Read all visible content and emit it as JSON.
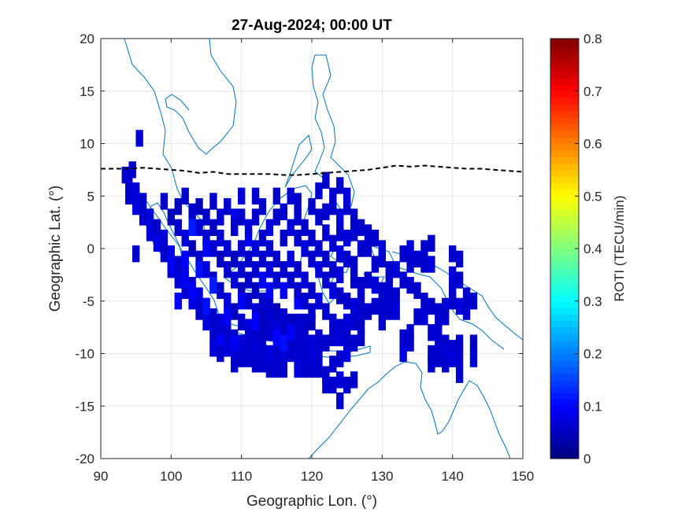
{
  "chart_data": {
    "type": "heatmap",
    "title": "27-Aug-2024; 00:00 UT",
    "xlabel": "Geographic Lon. (°)",
    "ylabel": "Geographic Lat. (°)",
    "xlim": [
      90,
      150
    ],
    "ylim": [
      -20,
      20
    ],
    "xticks": [
      "90",
      "100",
      "110",
      "120",
      "130",
      "140",
      "150"
    ],
    "yticks": [
      "20",
      "15",
      "10",
      "5",
      "0",
      "-5",
      "-10",
      "-15",
      "-20"
    ],
    "grid": true,
    "colorbar": {
      "label": "ROTI (TECU/min)",
      "range": [
        0,
        0.8
      ],
      "ticks": [
        "0.8",
        "0.7",
        "0.6",
        "0.5",
        "0.4",
        "0.3",
        "0.2",
        "0.1",
        "0"
      ],
      "colormap": "jet"
    },
    "roti_cells": [
      [
        94,
        6.5,
        0.06
      ],
      [
        94,
        5,
        0.06
      ],
      [
        95,
        5.5,
        0.07
      ],
      [
        95,
        4,
        0.07
      ],
      [
        96,
        4.5,
        0.06
      ],
      [
        96,
        3,
        0.06
      ],
      [
        97,
        3,
        0.07
      ],
      [
        97,
        1.5,
        0.07
      ],
      [
        98,
        2,
        0.06
      ],
      [
        98,
        0.5,
        0.08
      ],
      [
        99,
        1,
        0.07
      ],
      [
        99,
        -0.5,
        0.06
      ],
      [
        100,
        -0.5,
        0.08
      ],
      [
        100,
        -2,
        0.07
      ],
      [
        101,
        -1.5,
        0.06
      ],
      [
        101,
        -3,
        0.07
      ],
      [
        102,
        -2.5,
        0.07
      ],
      [
        102,
        -4,
        0.06
      ],
      [
        103,
        -3.5,
        0.06
      ],
      [
        103,
        -5,
        0.08
      ],
      [
        104,
        -4.5,
        0.07
      ],
      [
        104,
        -6,
        0.06
      ],
      [
        105,
        -5.5,
        0.06
      ],
      [
        105,
        -7,
        0.07
      ],
      [
        106,
        -6.5,
        0.06
      ],
      [
        106,
        -8,
        0.06
      ],
      [
        107,
        -7,
        0.07
      ],
      [
        107,
        -8.5,
        0.06
      ],
      [
        108,
        -8,
        0.06
      ],
      [
        108,
        -9.5,
        0.07
      ],
      [
        109,
        -8.5,
        0.06
      ],
      [
        109,
        -10,
        0.06
      ],
      [
        110,
        -9,
        0.07
      ],
      [
        110,
        -10.5,
        0.06
      ],
      [
        111,
        -9,
        0.06
      ],
      [
        111,
        -10.5,
        0.06
      ],
      [
        112,
        -9.5,
        0.07
      ],
      [
        112,
        -11,
        0.06
      ],
      [
        113,
        -9.5,
        0.06
      ],
      [
        113,
        -11,
        0.06
      ],
      [
        114,
        -10,
        0.07
      ],
      [
        114,
        -11.5,
        0.06
      ],
      [
        115,
        -10,
        0.06
      ],
      [
        115,
        -11.5,
        0.06
      ],
      [
        116,
        -10,
        0.07
      ],
      [
        116,
        -11.5,
        0.06
      ],
      [
        117,
        -10,
        0.06
      ],
      [
        118,
        -10,
        0.06
      ],
      [
        118,
        -11.5,
        0.07
      ],
      [
        119,
        -10,
        0.06
      ],
      [
        120,
        -10,
        0.07
      ],
      [
        120,
        -11.5,
        0.06
      ],
      [
        121,
        -10,
        0.06
      ],
      [
        94.5,
        7.5,
        0.06
      ],
      [
        93.5,
        7,
        0.06
      ],
      [
        95.5,
        10.5,
        0.07
      ],
      [
        95,
        -0.5,
        0.06
      ],
      [
        100,
        3,
        0.05
      ],
      [
        101,
        2,
        0.06
      ],
      [
        102,
        1,
        0.07
      ],
      [
        103,
        0,
        0.05
      ],
      [
        104,
        -1,
        0.06
      ],
      [
        105,
        -2,
        0.07
      ],
      [
        106,
        -3,
        0.05
      ],
      [
        107,
        -4,
        0.06
      ],
      [
        108,
        -5,
        0.07
      ],
      [
        109,
        -6,
        0.05
      ],
      [
        110,
        -7,
        0.06
      ],
      [
        111,
        -7.5,
        0.07
      ],
      [
        112,
        -8,
        0.06
      ],
      [
        113,
        -8,
        0.05
      ],
      [
        114,
        -8,
        0.06
      ],
      [
        115,
        -7.5,
        0.07
      ],
      [
        116,
        -8,
        0.06
      ],
      [
        117,
        -8.5,
        0.05
      ],
      [
        118,
        -8.5,
        0.06
      ],
      [
        119,
        -8.5,
        0.06
      ],
      [
        99,
        4.5,
        0.06
      ],
      [
        101,
        4,
        0.05
      ],
      [
        102,
        5,
        0.06
      ],
      [
        103,
        3.5,
        0.06
      ],
      [
        104,
        4,
        0.05
      ],
      [
        104,
        2,
        0.07
      ],
      [
        105,
        3,
        0.06
      ],
      [
        105,
        1,
        0.06
      ],
      [
        106,
        2,
        0.05
      ],
      [
        106,
        0,
        0.06
      ],
      [
        107,
        1,
        0.07
      ],
      [
        107,
        -1,
        0.05
      ],
      [
        108,
        0,
        0.06
      ],
      [
        108,
        -2,
        0.06
      ],
      [
        109,
        -1,
        0.05
      ],
      [
        109,
        -3,
        0.07
      ],
      [
        110,
        -2,
        0.06
      ],
      [
        110,
        -4,
        0.05
      ],
      [
        111,
        -3,
        0.06
      ],
      [
        111,
        -5,
        0.06
      ],
      [
        112,
        -4,
        0.05
      ],
      [
        112,
        -6,
        0.07
      ],
      [
        113,
        -5,
        0.06
      ],
      [
        113,
        -6.5,
        0.05
      ],
      [
        114,
        -5.5,
        0.06
      ],
      [
        114,
        -7,
        0.06
      ],
      [
        115,
        -6,
        0.05
      ],
      [
        116,
        -6.5,
        0.06
      ],
      [
        117,
        -7,
        0.05
      ],
      [
        118,
        -7,
        0.06
      ],
      [
        119,
        -7,
        0.06
      ],
      [
        120,
        -7,
        0.05
      ],
      [
        103,
        2,
        0.12
      ],
      [
        102,
        -1,
        0.1
      ],
      [
        101,
        -5,
        0.09
      ],
      [
        104,
        -2,
        0.11
      ],
      [
        106,
        -3.5,
        0.12
      ],
      [
        103,
        -4,
        0.1
      ],
      [
        105,
        -5.5,
        0.11
      ],
      [
        108,
        -6.5,
        0.1
      ],
      [
        110,
        -5,
        0.09
      ],
      [
        112,
        -7,
        0.1
      ],
      [
        107,
        -9,
        0.1
      ],
      [
        109,
        -9,
        0.09
      ],
      [
        115,
        -8.5,
        0.1
      ],
      [
        116,
        -9,
        0.11
      ],
      [
        117,
        -8,
        0.09
      ],
      [
        113,
        -3,
        0.1
      ],
      [
        114,
        -4,
        0.1
      ],
      [
        116,
        -4,
        0.09
      ],
      [
        118,
        -5,
        0.1
      ],
      [
        111,
        1,
        0.09
      ],
      [
        109,
        3,
        0.09
      ],
      [
        100,
        -1.5,
        0.1
      ],
      [
        102,
        -3,
        0.09
      ],
      [
        105,
        0,
        0.1
      ],
      [
        106,
        4.5,
        0.06
      ],
      [
        107,
        3,
        0.07
      ],
      [
        108,
        4,
        0.06
      ],
      [
        109,
        2,
        0.06
      ],
      [
        110,
        3,
        0.06
      ],
      [
        111,
        2,
        0.07
      ],
      [
        112,
        3,
        0.06
      ],
      [
        113,
        1,
        0.06
      ],
      [
        114,
        2,
        0.07
      ],
      [
        115,
        3,
        0.06
      ],
      [
        116,
        1,
        0.06
      ],
      [
        117,
        2,
        0.07
      ],
      [
        118,
        3,
        0.06
      ],
      [
        118,
        1,
        0.06
      ],
      [
        119,
        2,
        0.06
      ],
      [
        119,
        0,
        0.07
      ],
      [
        120,
        1,
        0.06
      ],
      [
        120,
        -1,
        0.06
      ],
      [
        121,
        0,
        0.06
      ],
      [
        121,
        -2,
        0.07
      ],
      [
        122,
        -1,
        0.06
      ],
      [
        122,
        -3,
        0.06
      ],
      [
        123,
        -2,
        0.06
      ],
      [
        123,
        -4,
        0.07
      ],
      [
        110,
        0,
        0.06
      ],
      [
        111,
        -1,
        0.06
      ],
      [
        112,
        0,
        0.07
      ],
      [
        112,
        -2,
        0.06
      ],
      [
        113,
        -1,
        0.06
      ],
      [
        114,
        0,
        0.06
      ],
      [
        114,
        -2,
        0.07
      ],
      [
        115,
        -1,
        0.06
      ],
      [
        115,
        -3,
        0.06
      ],
      [
        116,
        -2,
        0.06
      ],
      [
        117,
        -1,
        0.07
      ],
      [
        117,
        -3,
        0.06
      ],
      [
        118,
        -2,
        0.06
      ],
      [
        118,
        -4,
        0.06
      ],
      [
        119,
        -3,
        0.07
      ],
      [
        119,
        -5,
        0.06
      ],
      [
        120,
        -4,
        0.06
      ],
      [
        120,
        -6,
        0.06
      ],
      [
        121,
        -5,
        0.07
      ],
      [
        122,
        -6,
        0.06
      ],
      [
        123,
        -7,
        0.06
      ],
      [
        124,
        -7.5,
        0.06
      ],
      [
        125,
        -7,
        0.07
      ],
      [
        126,
        -7,
        0.06
      ],
      [
        127,
        -6.5,
        0.06
      ],
      [
        128,
        -6,
        0.06
      ],
      [
        129,
        -5.5,
        0.06
      ],
      [
        112,
        5,
        0.06
      ],
      [
        115,
        5,
        0.06
      ],
      [
        117,
        5,
        0.07
      ],
      [
        118,
        4.5,
        0.06
      ],
      [
        116,
        3.5,
        0.06
      ],
      [
        113,
        4,
        0.06
      ],
      [
        110,
        5,
        0.07
      ],
      [
        121,
        3,
        0.06
      ],
      [
        122,
        3.5,
        0.06
      ],
      [
        123,
        4,
        0.06
      ],
      [
        124,
        3,
        0.07
      ],
      [
        125,
        4,
        0.06
      ],
      [
        126,
        3,
        0.06
      ],
      [
        124,
        1.5,
        0.06
      ],
      [
        125,
        1,
        0.07
      ],
      [
        126,
        1.5,
        0.06
      ],
      [
        127,
        2,
        0.06
      ],
      [
        128,
        1.5,
        0.06
      ],
      [
        123,
        0.5,
        0.06
      ],
      [
        124,
        -0.5,
        0.07
      ],
      [
        125,
        -1,
        0.06
      ],
      [
        126,
        -1.5,
        0.06
      ],
      [
        127,
        0,
        0.06
      ],
      [
        128,
        0,
        0.06
      ],
      [
        124,
        -2.5,
        0.07
      ],
      [
        126,
        -3,
        0.06
      ],
      [
        127,
        -3.5,
        0.06
      ],
      [
        128,
        -3,
        0.06
      ],
      [
        129,
        -3.5,
        0.07
      ],
      [
        130,
        -4,
        0.06
      ],
      [
        124,
        -4.5,
        0.06
      ],
      [
        125,
        -5,
        0.06
      ],
      [
        126,
        -5.5,
        0.07
      ],
      [
        127,
        -5,
        0.06
      ],
      [
        122,
        6.5,
        0.06
      ],
      [
        123,
        5,
        0.06
      ],
      [
        124,
        6,
        0.06
      ],
      [
        125,
        5,
        0.07
      ],
      [
        122,
        1.5,
        0.06
      ],
      [
        120,
        4,
        0.06
      ],
      [
        121,
        5.5,
        0.06
      ],
      [
        129,
        1,
        0.06
      ],
      [
        130,
        -1,
        0.06
      ],
      [
        130,
        0,
        0.07
      ],
      [
        129,
        -1.5,
        0.06
      ],
      [
        131,
        -2,
        0.06
      ],
      [
        131,
        -3,
        0.06
      ],
      [
        132,
        -2,
        0.07
      ],
      [
        133,
        -3,
        0.06
      ],
      [
        131,
        -4.5,
        0.06
      ],
      [
        132,
        -4.5,
        0.06
      ],
      [
        132,
        -6,
        0.07
      ],
      [
        131,
        -6,
        0.06
      ],
      [
        130,
        -5.5,
        0.06
      ],
      [
        130,
        -7,
        0.06
      ],
      [
        133,
        -0.5,
        0.06
      ],
      [
        134,
        0,
        0.07
      ],
      [
        134,
        -1.5,
        0.06
      ],
      [
        135,
        -1,
        0.06
      ],
      [
        136,
        -1.5,
        0.06
      ],
      [
        136,
        0,
        0.06
      ],
      [
        137,
        -1.5,
        0.07
      ],
      [
        134,
        -3.5,
        0.06
      ],
      [
        135,
        -4,
        0.06
      ],
      [
        136,
        -5,
        0.06
      ],
      [
        136,
        -6.5,
        0.07
      ],
      [
        137,
        -5.5,
        0.06
      ],
      [
        138,
        -6,
        0.06
      ],
      [
        138,
        -7.5,
        0.06
      ],
      [
        137,
        -8,
        0.07
      ],
      [
        138,
        -9,
        0.06
      ],
      [
        133,
        -8.5,
        0.06
      ],
      [
        134,
        -9,
        0.06
      ],
      [
        133,
        -10,
        0.07
      ],
      [
        134,
        -8,
        0.06
      ],
      [
        135,
        -6.5,
        0.06
      ],
      [
        137,
        0.5,
        0.06
      ],
      [
        140,
        -0.5,
        0.06
      ],
      [
        141,
        -1,
        0.06
      ],
      [
        140,
        -2.5,
        0.07
      ],
      [
        141,
        -3,
        0.06
      ],
      [
        140,
        -4,
        0.06
      ],
      [
        140,
        -5,
        0.06
      ],
      [
        141,
        -5.5,
        0.07
      ],
      [
        142,
        -4.5,
        0.06
      ],
      [
        142,
        -6,
        0.06
      ],
      [
        143,
        -5,
        0.06
      ],
      [
        139,
        -5.5,
        0.07
      ],
      [
        139,
        -6.5,
        0.06
      ],
      [
        143,
        -9,
        0.06
      ],
      [
        139,
        -9,
        0.06
      ],
      [
        139,
        -10,
        0.07
      ],
      [
        140,
        -9.5,
        0.06
      ],
      [
        141,
        -10.5,
        0.06
      ],
      [
        141,
        -12,
        0.06
      ],
      [
        143,
        -10.5,
        0.07
      ],
      [
        137,
        -10,
        0.06
      ],
      [
        137,
        -11,
        0.06
      ],
      [
        138,
        -10.5,
        0.06
      ],
      [
        139,
        -11,
        0.06
      ],
      [
        140,
        -10.5,
        0.07
      ],
      [
        141,
        -9,
        0.06
      ],
      [
        122,
        -13,
        0.06
      ],
      [
        123,
        -13,
        0.06
      ],
      [
        124,
        -12.5,
        0.07
      ],
      [
        125,
        -13,
        0.06
      ],
      [
        126,
        -12.5,
        0.06
      ],
      [
        124,
        -14.5,
        0.06
      ],
      [
        122,
        -12,
        0.06
      ],
      [
        118,
        -11,
        0.07
      ],
      [
        119,
        -11.5,
        0.06
      ],
      [
        121,
        -11.5,
        0.06
      ],
      [
        123,
        -11,
        0.06
      ],
      [
        124,
        -10.5,
        0.06
      ],
      [
        125,
        -10,
        0.07
      ],
      [
        126,
        -9,
        0.06
      ],
      [
        127,
        -8.5,
        0.06
      ],
      [
        127,
        -7.5,
        0.06
      ],
      [
        120,
        -9,
        0.07
      ],
      [
        121,
        -8.5,
        0.06
      ],
      [
        122,
        -9,
        0.06
      ],
      [
        123,
        -8.5,
        0.06
      ],
      [
        124,
        -8.5,
        0.07
      ],
      [
        125,
        -8.5,
        0.06
      ],
      [
        109,
        -11,
        0.06
      ],
      [
        107,
        -10,
        0.06
      ],
      [
        106,
        -9.5,
        0.07
      ]
    ],
    "equator_line": [
      [
        90,
        7.6
      ],
      [
        94,
        7.6
      ],
      [
        96,
        7.7
      ],
      [
        98,
        7.6
      ],
      [
        100,
        7.5
      ],
      [
        102,
        7.4
      ],
      [
        104,
        7.2
      ],
      [
        106,
        7.3
      ],
      [
        108,
        7.1
      ],
      [
        110,
        7.1
      ],
      [
        112,
        7.1
      ],
      [
        114,
        7.1
      ],
      [
        116,
        7.0
      ],
      [
        118,
        7.0
      ],
      [
        120,
        7.1
      ],
      [
        122,
        7.2
      ],
      [
        124,
        7.3
      ],
      [
        126,
        7.4
      ],
      [
        128,
        7.5
      ],
      [
        130,
        7.7
      ],
      [
        132,
        7.9
      ],
      [
        134,
        7.8
      ],
      [
        136,
        7.9
      ],
      [
        138,
        7.8
      ],
      [
        140,
        7.7
      ],
      [
        142,
        7.6
      ],
      [
        144,
        7.6
      ],
      [
        146,
        7.5
      ],
      [
        148,
        7.4
      ],
      [
        150,
        7.3
      ]
    ]
  }
}
